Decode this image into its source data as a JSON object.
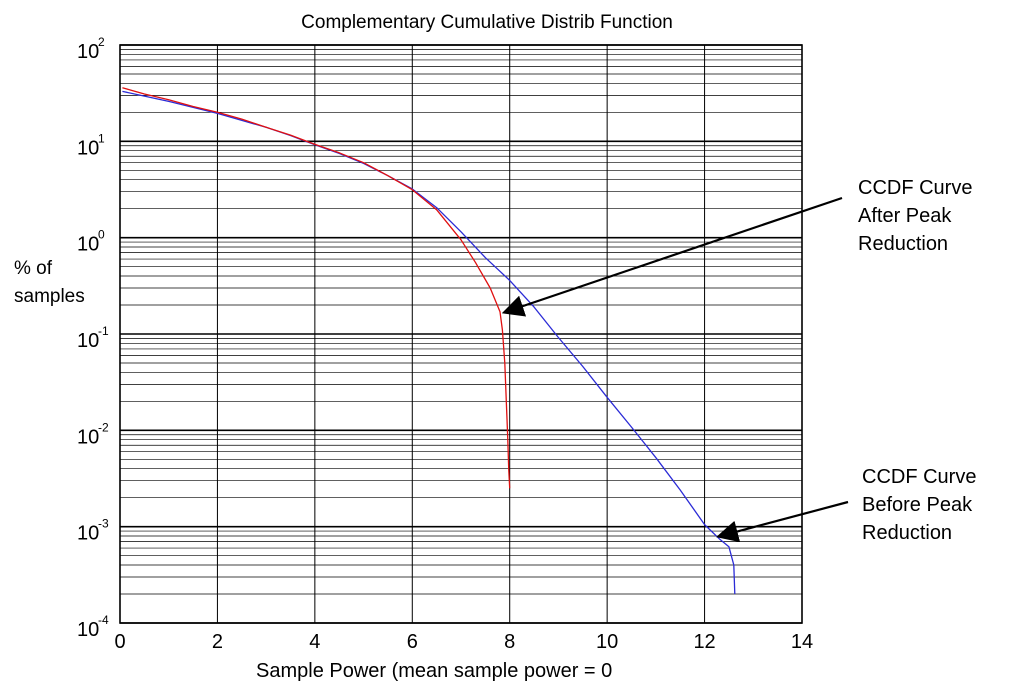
{
  "chart_data": {
    "type": "line",
    "title": "Complementary Cumulative Distrib Function",
    "xlabel": "Sample Power (mean sample power = 0",
    "ylabel": [
      "% of",
      "samples"
    ],
    "x_scale": "linear",
    "y_scale": "log",
    "xlim": [
      0,
      14
    ],
    "ylim": [
      0.0001,
      100
    ],
    "x_ticks": [
      0,
      2,
      4,
      6,
      8,
      10,
      12,
      14
    ],
    "y_ticks": [
      {
        "base": "10",
        "exp": "2",
        "value": 100
      },
      {
        "base": "10",
        "exp": "1",
        "value": 10
      },
      {
        "base": "10",
        "exp": "0",
        "value": 1
      },
      {
        "base": "10",
        "exp": "-1",
        "value": 0.1
      },
      {
        "base": "10",
        "exp": "-2",
        "value": 0.01
      },
      {
        "base": "10",
        "exp": "-3",
        "value": 0.001
      },
      {
        "base": "10",
        "exp": "-4",
        "value": 0.0001
      }
    ],
    "grid": true,
    "series": [
      {
        "color": "#2b2bd6",
        "points": [
          [
            0.05,
            33
          ],
          [
            0.5,
            29.5
          ],
          [
            1,
            26
          ],
          [
            1.5,
            22.5
          ],
          [
            2,
            19.5
          ],
          [
            2.5,
            16.5
          ],
          [
            3,
            14
          ],
          [
            3.5,
            11.5
          ],
          [
            4,
            9.2
          ],
          [
            4.5,
            7.5
          ],
          [
            5,
            5.9
          ],
          [
            5.5,
            4.4
          ],
          [
            6,
            3.2
          ],
          [
            6.5,
            2.05
          ],
          [
            7,
            1.15
          ],
          [
            7.5,
            0.62
          ],
          [
            8,
            0.36
          ],
          [
            8.5,
            0.19
          ],
          [
            9,
            0.092
          ],
          [
            9.5,
            0.046
          ],
          [
            10,
            0.022
          ],
          [
            10.5,
            0.0108
          ],
          [
            11,
            0.0052
          ],
          [
            11.5,
            0.0024
          ],
          [
            12,
            0.00105
          ],
          [
            12.3,
            0.00075
          ],
          [
            12.5,
            0.00062
          ],
          [
            12.6,
            0.0004
          ],
          [
            12.62,
            0.0002
          ]
        ]
      },
      {
        "color": "#e01010",
        "points": [
          [
            0.05,
            36
          ],
          [
            0.5,
            31
          ],
          [
            1,
            27
          ],
          [
            1.5,
            23
          ],
          [
            2,
            20
          ],
          [
            2.5,
            17
          ],
          [
            3,
            14
          ],
          [
            3.5,
            11.6
          ],
          [
            4,
            9.3
          ],
          [
            4.5,
            7.6
          ],
          [
            5,
            6
          ],
          [
            5.5,
            4.4
          ],
          [
            6,
            3.15
          ],
          [
            6.5,
            1.95
          ],
          [
            7,
            0.95
          ],
          [
            7.3,
            0.55
          ],
          [
            7.6,
            0.3
          ],
          [
            7.8,
            0.17
          ],
          [
            7.85,
            0.11
          ],
          [
            7.9,
            0.05
          ],
          [
            7.93,
            0.02
          ],
          [
            7.96,
            0.008
          ],
          [
            7.98,
            0.004
          ],
          [
            8,
            0.0025
          ]
        ]
      }
    ],
    "annotations": [
      {
        "lines": [
          "CCDF Curve",
          "After Peak",
          "Reduction"
        ],
        "points_to": [
          7.8,
          0.17
        ]
      },
      {
        "lines": [
          "CCDF Curve",
          "Before Peak",
          "Reduction"
        ],
        "points_to": [
          12.2,
          0.0008
        ]
      }
    ]
  }
}
